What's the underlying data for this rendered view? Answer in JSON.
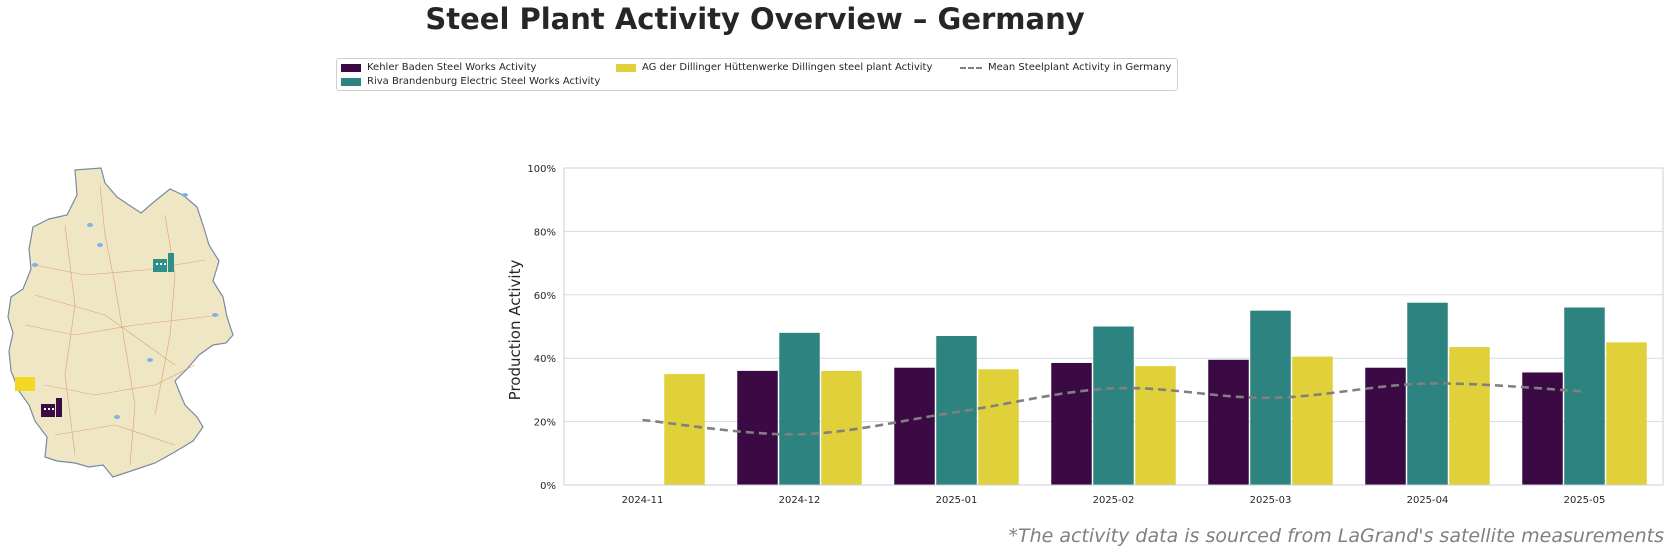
{
  "title": "Steel Plant Activity Overview – Germany",
  "source_note": "*The activity data is sourced from LaGrand's satellite measurements",
  "legend": {
    "items": [
      {
        "label": "Kehler Baden Steel Works Activity",
        "color": "#3b0a45",
        "kind": "bar"
      },
      {
        "label": "Riva Brandenburg Electric Steel Works Activity",
        "color": "#2d837f",
        "kind": "bar"
      },
      {
        "label": "AG der Dillinger Hüttenwerke Dillingen steel plant Activity",
        "color": "#e0d03a",
        "kind": "bar"
      },
      {
        "label": "Mean Steelplant Activity in Germany",
        "color": "#808080",
        "kind": "dashed-line"
      }
    ]
  },
  "map": {
    "markers": [
      {
        "plant": "Riva Brandenburg Electric Steel Works",
        "color": "#2d8f87",
        "icon": "factory-icon"
      },
      {
        "plant": "AG der Dillinger Hüttenwerke Dillingen",
        "color": "#f2d823",
        "icon": "factory-icon"
      },
      {
        "plant": "Kehler Baden Steel Works",
        "color": "#3b0a45",
        "icon": "factory-icon"
      }
    ]
  },
  "chart_data": {
    "type": "bar",
    "ylabel": "Production Activity",
    "xlabel": "",
    "ylim": [
      0,
      100
    ],
    "yticks": [
      "0%",
      "20%",
      "40%",
      "60%",
      "80%",
      "100%"
    ],
    "categories": [
      "2024-11",
      "2024-12",
      "2025-01",
      "2025-02",
      "2025-03",
      "2025-04",
      "2025-05"
    ],
    "series": [
      {
        "name": "Kehler Baden Steel Works Activity",
        "color": "#3b0a45",
        "values": [
          null,
          36,
          37,
          38.5,
          39.5,
          37,
          35.5
        ]
      },
      {
        "name": "Riva Brandenburg Electric Steel Works Activity",
        "color": "#2d837f",
        "values": [
          null,
          48,
          47,
          50,
          55,
          57.5,
          56
        ]
      },
      {
        "name": "AG der Dillinger Hüttenwerke Dillingen steel plant Activity",
        "color": "#e0d03a",
        "values": [
          35,
          36,
          36.5,
          37.5,
          40.5,
          43.5,
          45
        ]
      }
    ],
    "mean_line": {
      "name": "Mean Steelplant Activity in Germany",
      "color": "#808080",
      "style": "dashed",
      "values": [
        20.5,
        16,
        23,
        30.5,
        27.5,
        32,
        29.5
      ]
    },
    "grid": "horizontal",
    "legend_position": "top"
  }
}
